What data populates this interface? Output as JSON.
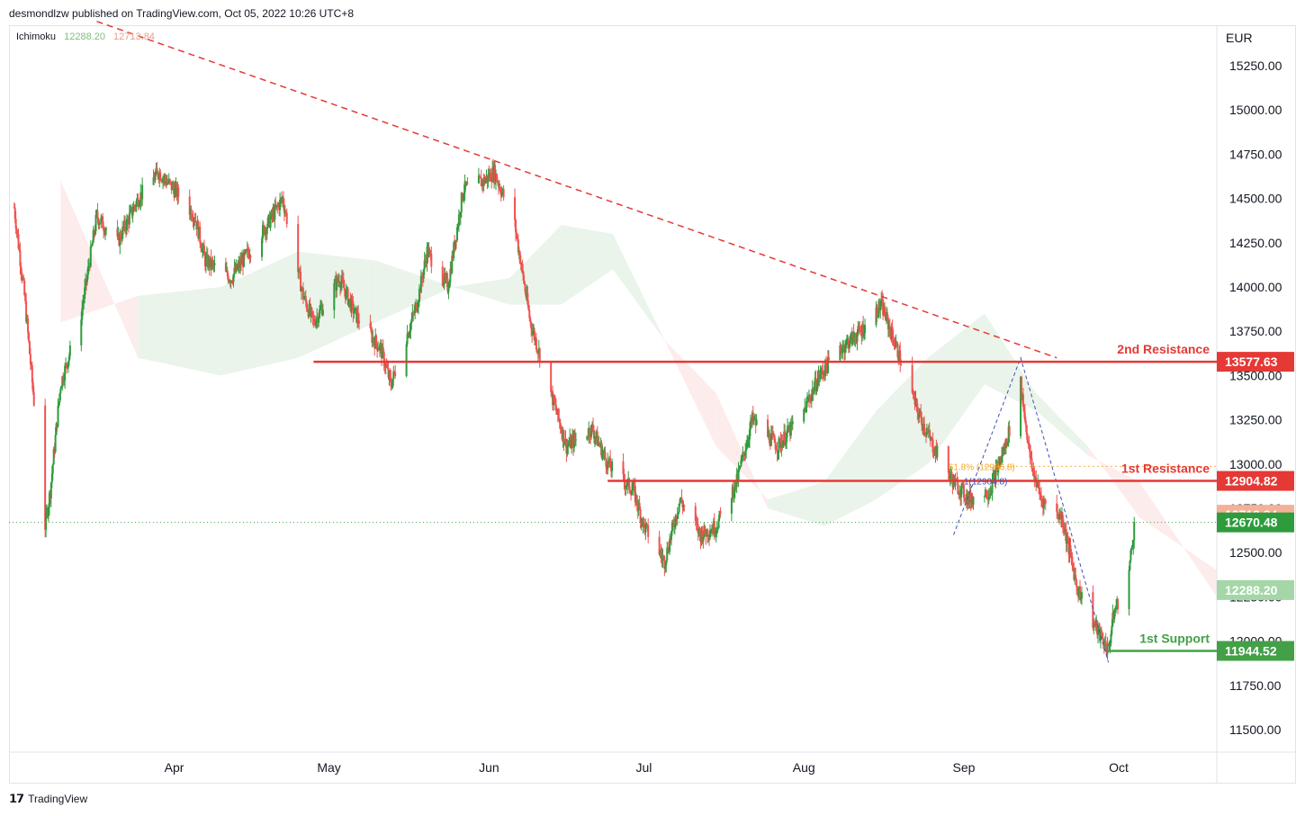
{
  "header": {
    "publisher_text": "desmondlzw published on TradingView.com, Oct 05, 2022 10:26 UTC+8"
  },
  "legend": {
    "indicator": "Ichimoku",
    "value_a": "12288.20",
    "value_b": "12713.84"
  },
  "footer": {
    "logo": "TradingView"
  },
  "colors": {
    "up": "#26a69a",
    "up_candle": "#2e9b3c",
    "down": "#ef5350",
    "resistance": "#e53935",
    "support": "#43a047",
    "cloud_red": "#fdecec",
    "cloud_green": "#eaf4ea",
    "trend": "#e53935",
    "fib_blue": "#3f51b5"
  },
  "chart_data": {
    "type": "candlestick",
    "currency": "EUR",
    "y_ticks": [
      15250,
      15000,
      14750,
      14500,
      14250,
      14000,
      13750,
      13500,
      13250,
      13000,
      12750,
      12500,
      12250,
      12000,
      11750,
      11500
    ],
    "y_tick_labels": [
      "15250.00",
      "15000.00",
      "14750.00",
      "14500.00",
      "14250.00",
      "14000.00",
      "13750.00",
      "13500.00",
      "13250.00",
      "13000.00",
      "12750.00",
      "12500.00",
      "12250.00",
      "12000.00",
      "11750.00",
      "11500.00"
    ],
    "ylim": [
      11400,
      15500
    ],
    "x_labels": [
      "Apr",
      "May",
      "Jun",
      "Jul",
      "Aug",
      "Sep",
      "Oct"
    ],
    "price_tags": [
      {
        "label": "13577.63",
        "value": 13577.63,
        "kind": "resistance"
      },
      {
        "label": "12904.82",
        "value": 12904.82,
        "kind": "resistance"
      },
      {
        "label": "12713.84",
        "value": 12713.84,
        "kind": "cloud_b"
      },
      {
        "label": "12670.48",
        "value": 12670.48,
        "kind": "last"
      },
      {
        "label": "12288.20",
        "value": 12288.2,
        "kind": "cloud_a"
      },
      {
        "label": "11944.52",
        "value": 11944.52,
        "kind": "support"
      }
    ],
    "levels": [
      {
        "name": "2nd Resistance",
        "value": 13577.63,
        "kind": "resistance"
      },
      {
        "name": "1st Resistance",
        "value": 12904.82,
        "kind": "resistance"
      },
      {
        "name": "1st Support",
        "value": 11944.52,
        "kind": "support"
      }
    ],
    "fib_labels": [
      {
        "text": "61.8% (12986.8)",
        "value": 12986.8
      },
      {
        "text": "1(12904.8)",
        "value": 12904.8
      }
    ],
    "trendline": {
      "start_date": "2022-03-17",
      "start_value": 15500,
      "end_date": "2022-09-19",
      "end_value": 13600
    },
    "last_price": 12670.48,
    "anchors": [
      [
        "2022-03-01",
        14450
      ],
      [
        "2022-03-03",
        13950
      ],
      [
        "2022-03-07",
        12650
      ],
      [
        "2022-03-08",
        12850
      ],
      [
        "2022-03-10",
        13450
      ],
      [
        "2022-03-14",
        13850
      ],
      [
        "2022-03-17",
        14400
      ],
      [
        "2022-03-21",
        14250
      ],
      [
        "2022-03-25",
        14500
      ],
      [
        "2022-03-29",
        14650
      ],
      [
        "2022-04-01",
        14550
      ],
      [
        "2022-04-05",
        14400
      ],
      [
        "2022-04-07",
        14150
      ],
      [
        "2022-04-12",
        14050
      ],
      [
        "2022-04-19",
        14350
      ],
      [
        "2022-04-22",
        14500
      ],
      [
        "2022-04-26",
        13950
      ],
      [
        "2022-04-28",
        13800
      ],
      [
        "2022-05-03",
        14050
      ],
      [
        "2022-05-06",
        13850
      ],
      [
        "2022-05-11",
        13650
      ],
      [
        "2022-05-13",
        13450
      ],
      [
        "2022-05-18",
        13900
      ],
      [
        "2022-05-20",
        14200
      ],
      [
        "2022-05-24",
        14000
      ],
      [
        "2022-05-27",
        14550
      ],
      [
        "2022-05-31",
        14600
      ],
      [
        "2022-06-02",
        14650
      ],
      [
        "2022-06-06",
        14350
      ],
      [
        "2022-06-09",
        13800
      ],
      [
        "2022-06-13",
        13400
      ],
      [
        "2022-06-16",
        13100
      ],
      [
        "2022-06-21",
        13200
      ],
      [
        "2022-06-24",
        13000
      ],
      [
        "2022-06-29",
        12850
      ],
      [
        "2022-07-01",
        12650
      ],
      [
        "2022-07-05",
        12450
      ],
      [
        "2022-07-08",
        12800
      ],
      [
        "2022-07-12",
        12600
      ],
      [
        "2022-07-15",
        12650
      ],
      [
        "2022-07-19",
        12900
      ],
      [
        "2022-07-22",
        13250
      ],
      [
        "2022-07-27",
        13100
      ],
      [
        "2022-08-01",
        13300
      ],
      [
        "2022-08-04",
        13500
      ],
      [
        "2022-08-08",
        13650
      ],
      [
        "2022-08-12",
        13750
      ],
      [
        "2022-08-16",
        13900
      ],
      [
        "2022-08-19",
        13650
      ],
      [
        "2022-08-23",
        13300
      ],
      [
        "2022-08-26",
        13100
      ],
      [
        "2022-08-30",
        12900
      ],
      [
        "2022-09-02",
        12800
      ],
      [
        "2022-09-06",
        12850
      ],
      [
        "2022-09-09",
        13100
      ],
      [
        "2022-09-12",
        13450
      ],
      [
        "2022-09-14",
        13000
      ],
      [
        "2022-09-16",
        12800
      ],
      [
        "2022-09-20",
        12700
      ],
      [
        "2022-09-23",
        12300
      ],
      [
        "2022-09-27",
        12050
      ],
      [
        "2022-09-29",
        11950
      ],
      [
        "2022-09-30",
        12150
      ],
      [
        "2022-10-03",
        12400
      ],
      [
        "2022-10-04",
        12650
      ]
    ],
    "cloud_a": [
      [
        "2022-03-10",
        13800
      ],
      [
        "2022-03-25",
        13950
      ],
      [
        "2022-04-10",
        14000
      ],
      [
        "2022-04-25",
        14200
      ],
      [
        "2022-05-10",
        14150
      ],
      [
        "2022-05-25",
        14000
      ],
      [
        "2022-06-05",
        14050
      ],
      [
        "2022-06-15",
        14350
      ],
      [
        "2022-06-25",
        14300
      ],
      [
        "2022-07-05",
        13700
      ],
      [
        "2022-07-15",
        13100
      ],
      [
        "2022-07-25",
        12800
      ],
      [
        "2022-08-05",
        12900
      ],
      [
        "2022-08-15",
        13300
      ],
      [
        "2022-08-25",
        13600
      ],
      [
        "2022-09-05",
        13850
      ],
      [
        "2022-09-15",
        13400
      ],
      [
        "2022-09-25",
        13100
      ],
      [
        "2022-10-05",
        12700
      ],
      [
        "2022-10-20",
        12400
      ]
    ],
    "cloud_b": [
      [
        "2022-03-10",
        14600
      ],
      [
        "2022-03-25",
        13600
      ],
      [
        "2022-04-10",
        13500
      ],
      [
        "2022-04-25",
        13600
      ],
      [
        "2022-05-10",
        13800
      ],
      [
        "2022-05-25",
        14000
      ],
      [
        "2022-06-05",
        13900
      ],
      [
        "2022-06-15",
        13900
      ],
      [
        "2022-06-25",
        14100
      ],
      [
        "2022-07-05",
        13700
      ],
      [
        "2022-07-15",
        13400
      ],
      [
        "2022-07-25",
        12750
      ],
      [
        "2022-08-05",
        12650
      ],
      [
        "2022-08-15",
        12800
      ],
      [
        "2022-08-25",
        13000
      ],
      [
        "2022-09-05",
        13450
      ],
      [
        "2022-09-15",
        13300
      ],
      [
        "2022-09-25",
        13050
      ],
      [
        "2022-10-05",
        12900
      ],
      [
        "2022-10-20",
        12250
      ]
    ]
  }
}
